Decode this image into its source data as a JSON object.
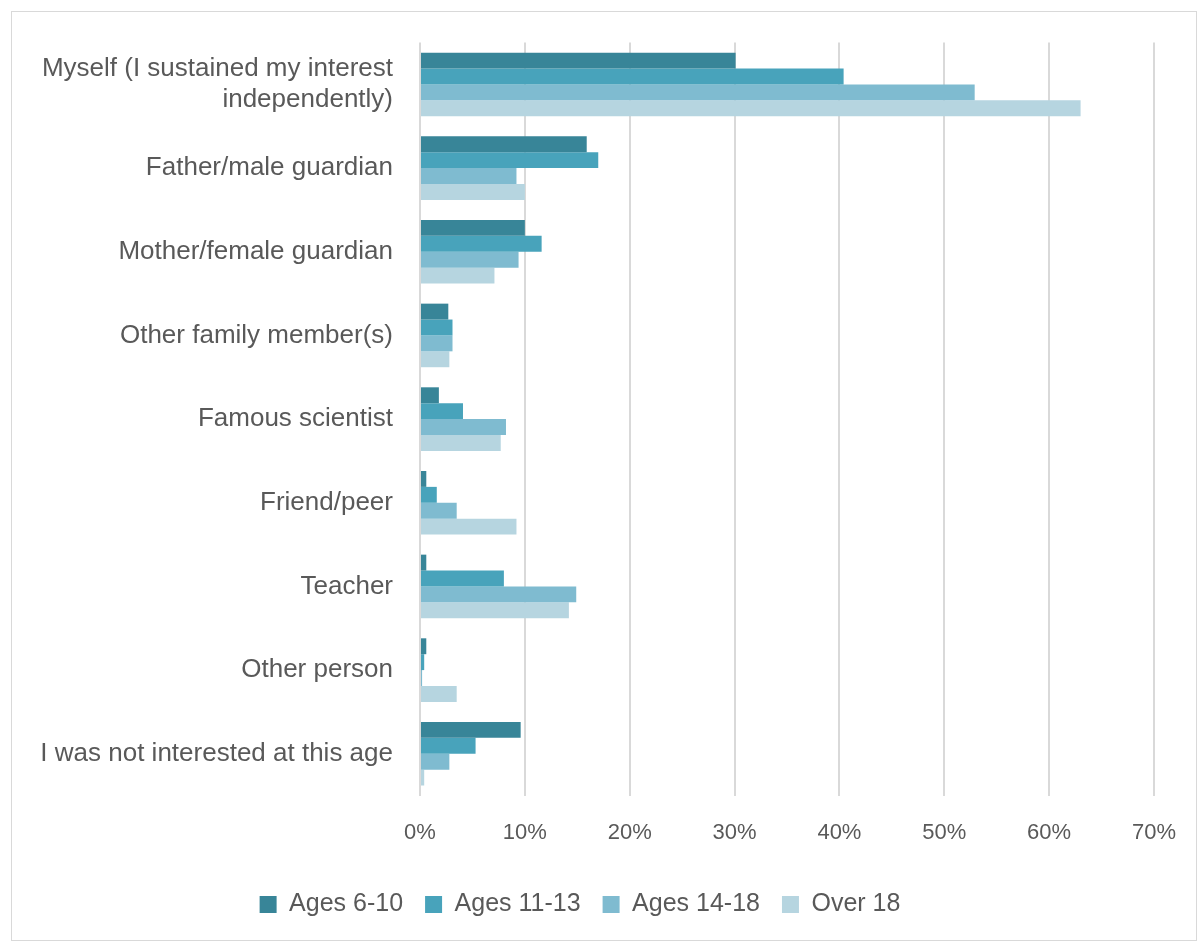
{
  "chart_data": {
    "type": "bar",
    "orientation": "horizontal",
    "categories": [
      "Myself (I sustained my interest independently)",
      "Father/male guardian",
      "Mother/female guardian",
      "Other family member(s)",
      "Famous scientist",
      "Friend/peer",
      "Teacher",
      "Other person",
      "I was not interested at this age"
    ],
    "series": [
      {
        "name": "Ages 6-10",
        "color": "#388598",
        "values": [
          30.1,
          15.9,
          10.0,
          2.7,
          1.8,
          0.6,
          0.6,
          0.6,
          9.6
        ]
      },
      {
        "name": "Ages 11-13",
        "color": "#48a3bb",
        "values": [
          40.4,
          17.0,
          11.6,
          3.1,
          4.1,
          1.6,
          8.0,
          0.4,
          5.3
        ]
      },
      {
        "name": "Ages 14-18",
        "color": "#7fbbd0",
        "values": [
          52.9,
          9.2,
          9.4,
          3.1,
          8.2,
          3.5,
          14.9,
          0.2,
          2.8
        ]
      },
      {
        "name": "Over 18",
        "color": "#b6d5e0",
        "values": [
          63.0,
          10.0,
          7.1,
          2.8,
          7.7,
          9.2,
          14.2,
          3.5,
          0.4
        ]
      }
    ],
    "xlim": [
      0,
      70
    ],
    "xticks": [
      {
        "value": 0,
        "label": "0%"
      },
      {
        "value": 10,
        "label": "10%"
      },
      {
        "value": 20,
        "label": "20%"
      },
      {
        "value": 30,
        "label": "30%"
      },
      {
        "value": 40,
        "label": "40%"
      },
      {
        "value": 50,
        "label": "50%"
      },
      {
        "value": 60,
        "label": "60%"
      },
      {
        "value": 70,
        "label": "70%"
      }
    ],
    "grid": "x",
    "legend": "bottom"
  }
}
